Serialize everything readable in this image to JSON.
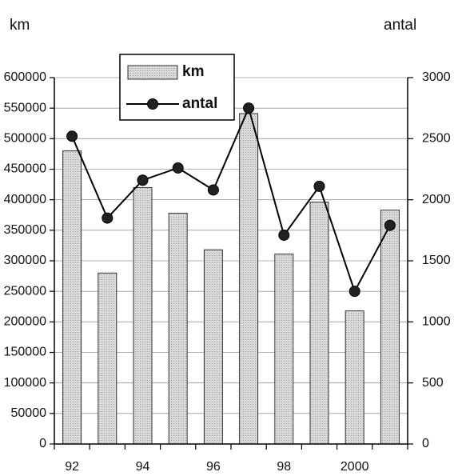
{
  "chart_data": {
    "type": "bar-line",
    "ylabel": "km",
    "y2label": "antal",
    "categories": [
      "92",
      null,
      "94",
      null,
      "96",
      null,
      "98",
      null,
      "2000",
      null
    ],
    "series": [
      {
        "name": "km",
        "type": "bar",
        "color": "#d9d9d9",
        "values": [
          480000,
          280000,
          420000,
          378000,
          318000,
          541000,
          311000,
          396000,
          218000,
          383000
        ]
      },
      {
        "name": "antal",
        "type": "line",
        "axis": "y2",
        "color": "#000000",
        "values": [
          2520,
          1850,
          2160,
          2260,
          2080,
          2750,
          1710,
          2110,
          1250,
          1790
        ]
      }
    ],
    "ylim": [
      0,
      600000
    ],
    "yticks": [
      0,
      50000,
      100000,
      150000,
      200000,
      250000,
      300000,
      350000,
      400000,
      450000,
      500000,
      550000,
      600000
    ],
    "y2lim": [
      0,
      3000
    ],
    "y2ticks": [
      0,
      500,
      1000,
      1500,
      2000,
      2500,
      3000
    ],
    "grid": true
  }
}
